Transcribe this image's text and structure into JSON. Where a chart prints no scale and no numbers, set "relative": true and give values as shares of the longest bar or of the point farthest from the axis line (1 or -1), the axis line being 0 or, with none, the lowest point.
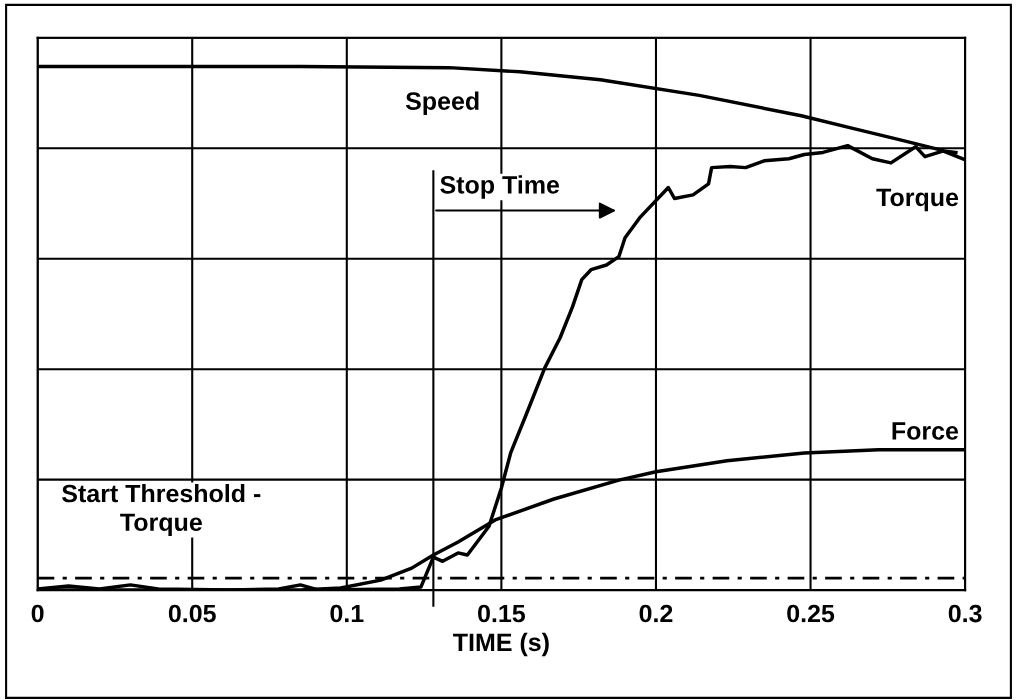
{
  "chart_data": {
    "type": "line",
    "xlabel": "TIME (s)",
    "relative": true,
    "xlim": [
      0,
      0.3
    ],
    "xticks": [
      0,
      0.05,
      0.1,
      0.15,
      0.2,
      0.25,
      0.3
    ],
    "grid": true,
    "tick_labels": "x",
    "series": [
      {
        "name": "Speed",
        "color": "#000000",
        "x": [
          0,
          0.085,
          0.133,
          0.156,
          0.182,
          0.214,
          0.247,
          0.263,
          0.279,
          0.292,
          0.3
        ],
        "values": [
          1.0,
          1.0,
          0.998,
          0.99,
          0.975,
          0.945,
          0.906,
          0.883,
          0.86,
          0.841,
          0.822
        ]
      },
      {
        "name": "Torque",
        "color": "#000000",
        "x": [
          0,
          0.01,
          0.02,
          0.03,
          0.039,
          0.062,
          0.078,
          0.085,
          0.091,
          0.117,
          0.124,
          0.128,
          0.131,
          0.136,
          0.139,
          0.146,
          0.15,
          0.153,
          0.158,
          0.164,
          0.169,
          0.173,
          0.176,
          0.179,
          0.184,
          0.188,
          0.19,
          0.195,
          0.204,
          0.206,
          0.212,
          0.217,
          0.218,
          0.224,
          0.229,
          0.235,
          0.243,
          0.248,
          0.254,
          0.262,
          0.27,
          0.276,
          0.284,
          0.287,
          0.293,
          0.297
        ],
        "values": [
          0.002,
          0.008,
          0.002,
          0.01,
          0.002,
          0,
          0.002,
          0.01,
          0,
          0.002,
          0.006,
          0.063,
          0.055,
          0.071,
          0.067,
          0.122,
          0.195,
          0.262,
          0.335,
          0.424,
          0.482,
          0.541,
          0.593,
          0.612,
          0.621,
          0.637,
          0.673,
          0.713,
          0.769,
          0.748,
          0.755,
          0.776,
          0.807,
          0.809,
          0.807,
          0.82,
          0.824,
          0.832,
          0.836,
          0.849,
          0.824,
          0.816,
          0.847,
          0.828,
          0.839,
          0.836
        ]
      },
      {
        "name": "Force",
        "color": "#000000",
        "x": [
          0,
          0.085,
          0.098,
          0.111,
          0.121,
          0.128,
          0.136,
          0.148,
          0.167,
          0.188,
          0.2,
          0.223,
          0.248,
          0.272,
          0.3
        ],
        "values": [
          0,
          0,
          0.004,
          0.019,
          0.042,
          0.067,
          0.092,
          0.134,
          0.174,
          0.21,
          0.226,
          0.247,
          0.262,
          0.268,
          0.268
        ]
      }
    ],
    "ref_lines": [
      {
        "axis": "y",
        "value": 0.023,
        "label": "Start Threshold -\nTorque",
        "line_style": "dashdot",
        "color": "#000000"
      },
      {
        "axis": "x",
        "value": 0.128,
        "label": "Stop Time",
        "color": "#000000"
      }
    ]
  }
}
